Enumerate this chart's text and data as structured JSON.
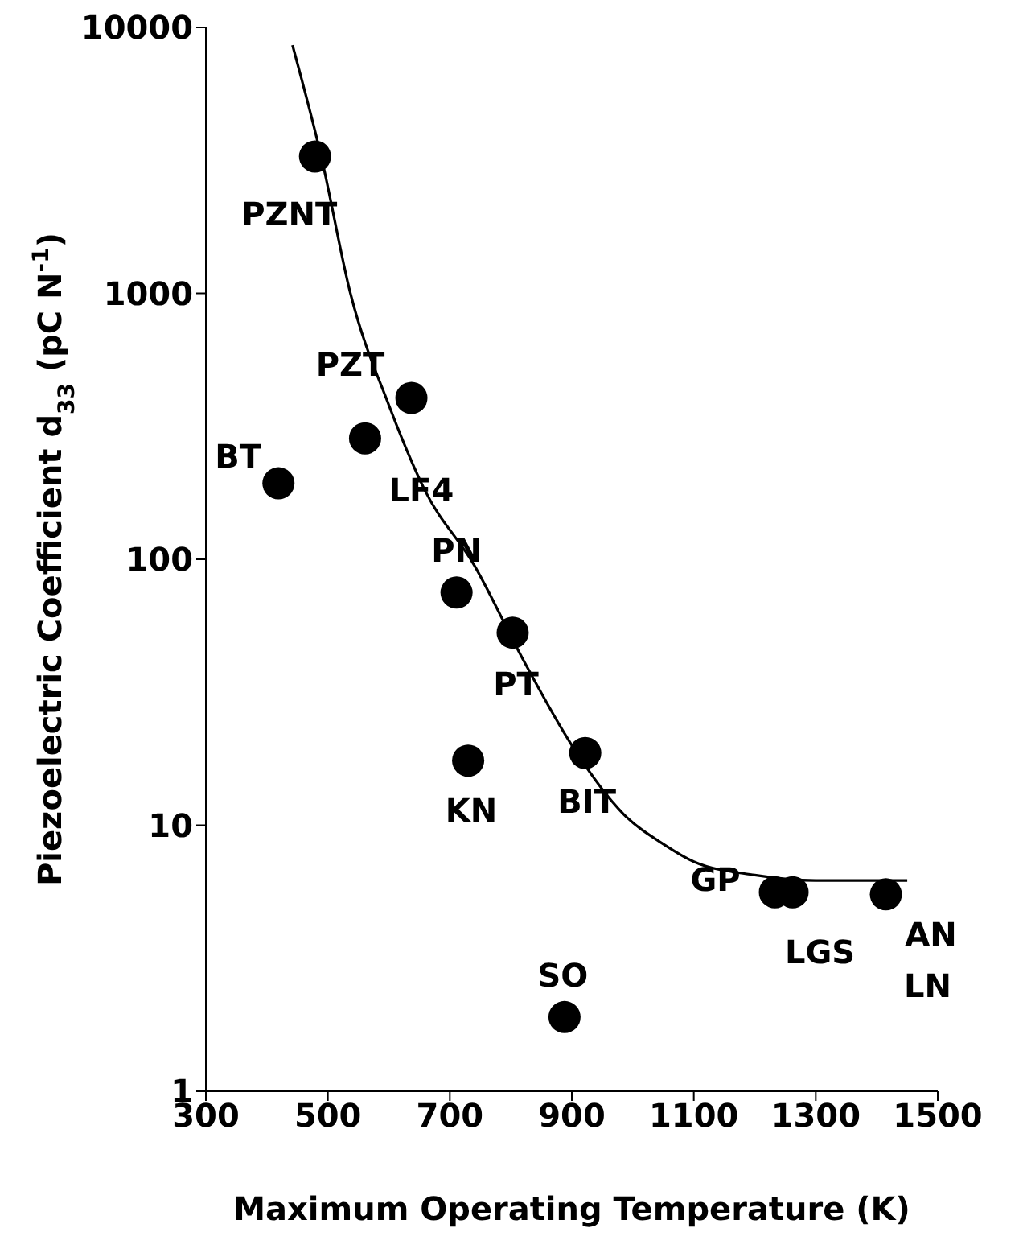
{
  "chart_data": {
    "type": "scatter",
    "xlabel": "Maximum Operating Temperature (K)",
    "ylabel": "Piezoelectric Coefficient d$_{33}$  (pC N$^{-1}$)",
    "log": "y",
    "xlim": [
      300,
      1500
    ],
    "xticks": [
      300,
      500,
      700,
      900,
      1100,
      1300,
      1500
    ],
    "ylim": [
      1,
      10000
    ],
    "yticks": [
      1,
      10,
      100,
      1000,
      10000
    ],
    "marker": "circle",
    "series": [
      {
        "color": "#000000",
        "x": [
          479,
          419,
          561,
          637,
          711,
          803,
          730,
          922,
          888,
          1233,
          1262,
          1415
        ],
        "values": [
          3270,
          193,
          285,
          404,
          75,
          53,
          17.5,
          18.7,
          1.9,
          5.6,
          5.6,
          5.5
        ]
      },
      {
        "type": "line",
        "marker": "none",
        "color": "#000000",
        "x": [
          442,
          490,
          537,
          600,
          660,
          740,
          820,
          900,
          985,
          1050,
          1100,
          1200,
          1300,
          1450
        ],
        "values": [
          8570,
          3200,
          1000,
          380,
          180,
          95,
          42,
          20,
          11,
          8.5,
          7.3,
          6.5,
          6.2,
          6.2
        ]
      }
    ],
    "annotations": [
      {
        "text": "PZNT",
        "x": 479,
        "y": 3270
      },
      {
        "text": "BT",
        "x": 419,
        "y": 193
      },
      {
        "text": "LF4",
        "x": 561,
        "y": 285
      },
      {
        "text": "PZT",
        "x": 637,
        "y": 404
      },
      {
        "text": "PN",
        "x": 711,
        "y": 75
      },
      {
        "text": "PT",
        "x": 803,
        "y": 53
      },
      {
        "text": "KN",
        "x": 730,
        "y": 17.5
      },
      {
        "text": "BIT",
        "x": 922,
        "y": 18.7
      },
      {
        "text": "SO",
        "x": 888,
        "y": 1.9
      },
      {
        "text": "GP",
        "x": 1233,
        "y": 5.6
      },
      {
        "text": "LGS",
        "x": 1262,
        "y": 5.6
      },
      {
        "text": "AN",
        "x": 1415,
        "y": 5.5
      },
      {
        "text": "LN",
        "x": 1415,
        "y": 5.5
      }
    ]
  }
}
